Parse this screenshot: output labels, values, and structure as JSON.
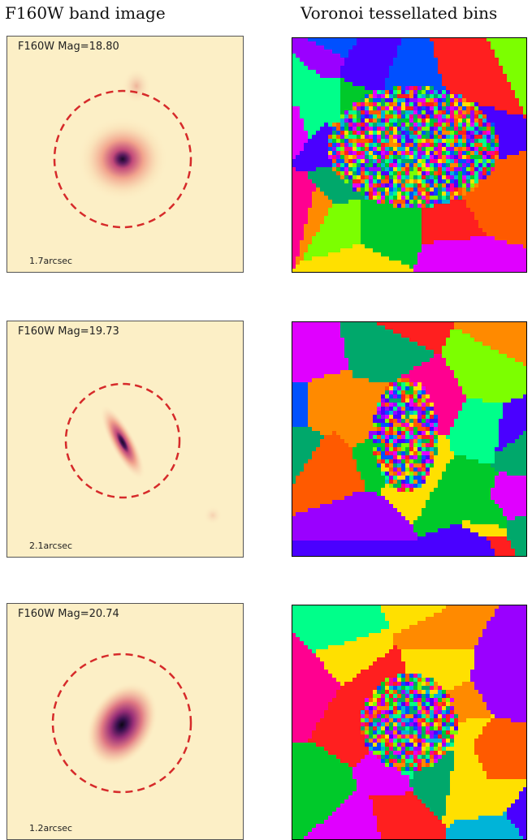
{
  "titles": {
    "left": "F160W band image",
    "right": "Voronoi tessellated bins"
  },
  "rows": [
    {
      "mag_label": "F160W Mag=18.80",
      "scale_label": "1.7arcsec"
    },
    {
      "mag_label": "F160W Mag=19.73",
      "scale_label": "2.1arcsec"
    },
    {
      "mag_label": "F160W Mag=20.74",
      "scale_label": "1.2arcsec"
    }
  ],
  "colors": {
    "background": "#fcefc6",
    "circle": "#d62a2a",
    "core": "#1a0a2a",
    "voronoi_palette": [
      "#ff1f1f",
      "#ff8a00",
      "#ffe000",
      "#7cff00",
      "#00c92a",
      "#00a86b",
      "#00b4d8",
      "#0050ff",
      "#4a00ff",
      "#9a00ff",
      "#e000ff",
      "#ff0090",
      "#00ff8a",
      "#ff5a00"
    ]
  }
}
